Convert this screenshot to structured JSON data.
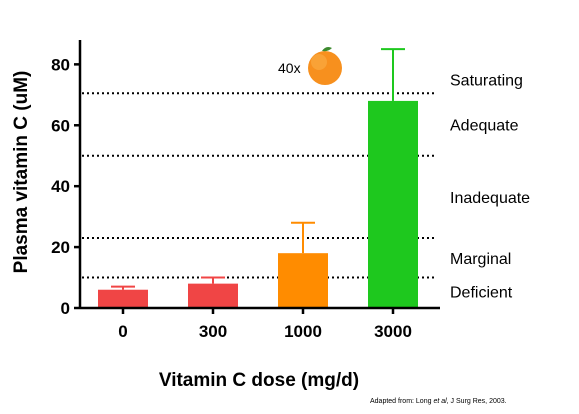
{
  "chart_data": {
    "type": "bar",
    "categories": [
      "0",
      "300",
      "1000",
      "3000"
    ],
    "values": [
      6,
      8,
      18,
      68
    ],
    "error_upper": [
      7,
      10,
      28,
      85
    ],
    "bar_colors": [
      "#f04545",
      "#f04545",
      "#ff8c00",
      "#1ec81e"
    ],
    "xlabel": "Vitamin C dose (mg/d)",
    "ylabel": "Plasma vitamin C (uM)",
    "ylim": [
      0,
      88
    ],
    "yticks": [
      0,
      20,
      40,
      60,
      80
    ],
    "thresholds": [
      {
        "value": 10,
        "zone_label": "Deficient"
      },
      {
        "value": 23,
        "zone_label": "Marginal"
      },
      {
        "value": 50,
        "zone_label": "Inadequate"
      },
      {
        "value": 70.5,
        "zone_label": "Adequate"
      },
      {
        "zone_label": "Saturating"
      }
    ],
    "grid": false,
    "annotation": {
      "multiplier": "40x",
      "icon": "orange-icon"
    },
    "source_note": "Adapted from: Long et al, J Surg Res, 2003."
  }
}
